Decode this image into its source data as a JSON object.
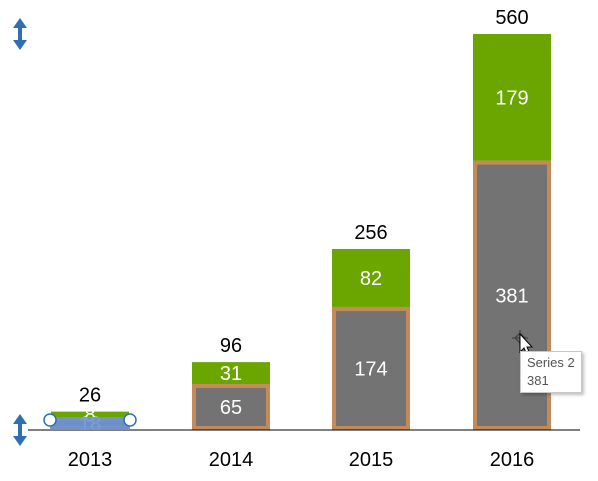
{
  "chart_data": {
    "type": "bar",
    "stacked": true,
    "categories": [
      "2013",
      "2014",
      "2015",
      "2016"
    ],
    "series": [
      {
        "values": [
          18,
          65,
          174,
          381
        ],
        "color": "#737373",
        "border": "#c58a5a"
      },
      {
        "values": [
          8,
          31,
          82,
          179
        ],
        "color": "#6aa500"
      }
    ],
    "totals": [
      26,
      96,
      256,
      560
    ],
    "ylim": [
      0,
      560
    ],
    "grid": false,
    "legend": "none"
  },
  "tooltip": {
    "series": "Series 2",
    "value": "381"
  },
  "icons": {
    "resize": "double-arrow-icon",
    "cursor": "move-cursor-icon"
  },
  "colors": {
    "handle": "#2e6fb5",
    "total_label": "#000000",
    "segment_label": "#ffffff"
  }
}
